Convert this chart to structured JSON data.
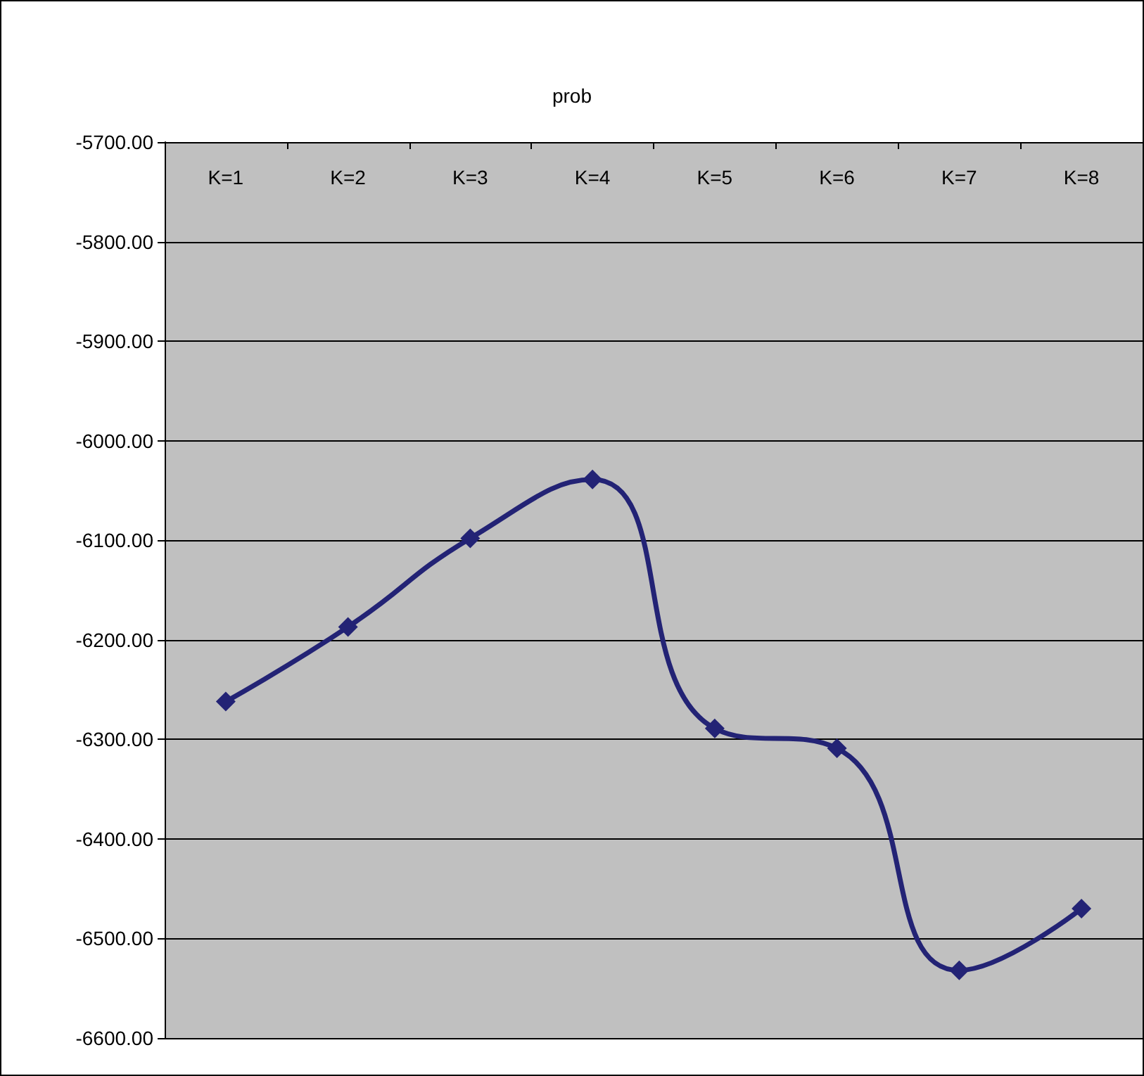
{
  "chart_data": {
    "type": "line",
    "title": "prob",
    "categories": [
      "K=1",
      "K=2",
      "K=3",
      "K=4",
      "K=5",
      "K=6",
      "K=7",
      "K=8"
    ],
    "series": [
      {
        "color": "#232375",
        "values": [
          -6262,
          -6187,
          -6098,
          -6039,
          -6289,
          -6309,
          -6532,
          -6470
        ]
      }
    ],
    "ylim": [
      -6600,
      -5700
    ],
    "yticks": [
      {
        "value": -6600,
        "label": "-6600.00"
      },
      {
        "value": -6500,
        "label": "-6500.00"
      },
      {
        "value": -6400,
        "label": "-6400.00"
      },
      {
        "value": -6300,
        "label": "-6300.00"
      },
      {
        "value": -6200,
        "label": "-6200.00"
      },
      {
        "value": -6100,
        "label": "-6100.00"
      },
      {
        "value": -6000,
        "label": "-6000.00"
      },
      {
        "value": -5900,
        "label": "-5900.00"
      },
      {
        "value": -5800,
        "label": "-5800.00"
      },
      {
        "value": -5700,
        "label": "-5700.00"
      }
    ],
    "grid": "y",
    "marker": "diamond",
    "line_style": "solid"
  }
}
